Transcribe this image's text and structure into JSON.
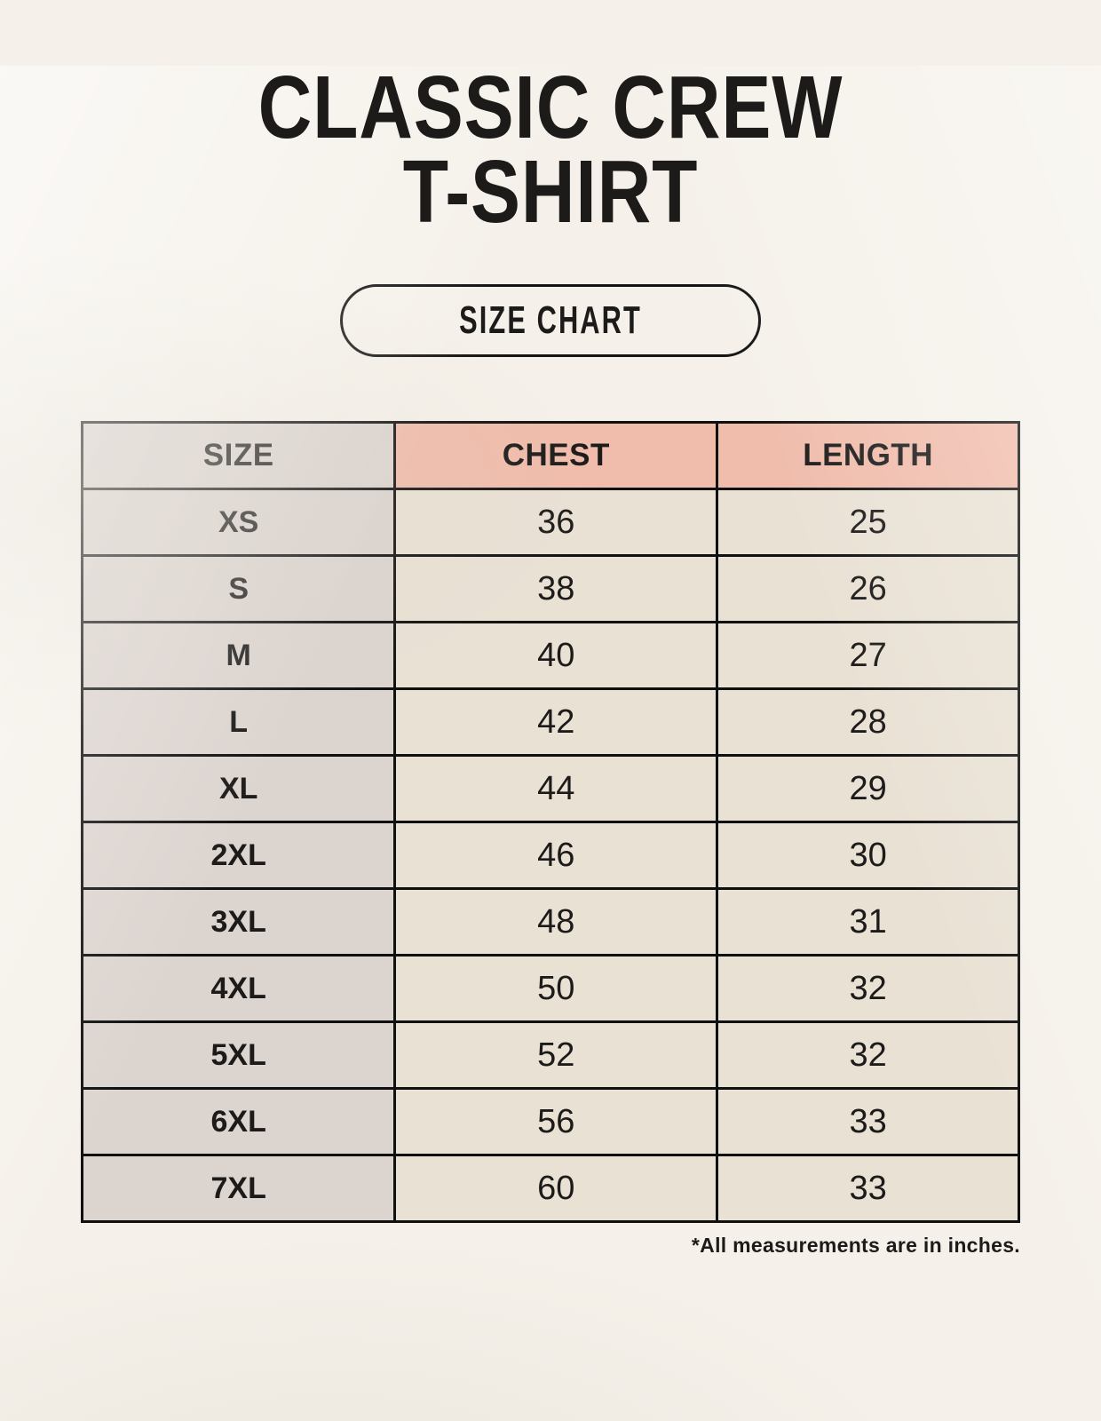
{
  "header": {
    "title_line1": "CLASSIC CREW",
    "title_line2": "T-SHIRT",
    "badge_label": "SIZE CHART"
  },
  "footer": {
    "note": "*All measurements are in inches."
  },
  "colors": {
    "page_bg": "#f5f1ea",
    "header_accent": "#f0bcab",
    "size_cell_bg": "#dcd4cf",
    "data_cell_bg": "#e9e1d4",
    "table_border": "#101010",
    "text_color": "#1c1b1a"
  },
  "chart_data": {
    "type": "table",
    "title": "Classic Crew T-Shirt Size Chart",
    "columns": [
      "SIZE",
      "CHEST",
      "LENGTH"
    ],
    "rows": [
      [
        "XS",
        36,
        25
      ],
      [
        "S",
        38,
        26
      ],
      [
        "M",
        40,
        27
      ],
      [
        "L",
        42,
        28
      ],
      [
        "XL",
        44,
        29
      ],
      [
        "2XL",
        46,
        30
      ],
      [
        "3XL",
        48,
        31
      ],
      [
        "4XL",
        50,
        32
      ],
      [
        "5XL",
        52,
        32
      ],
      [
        "6XL",
        56,
        33
      ],
      [
        "7XL",
        60,
        33
      ]
    ],
    "units": "inches"
  }
}
